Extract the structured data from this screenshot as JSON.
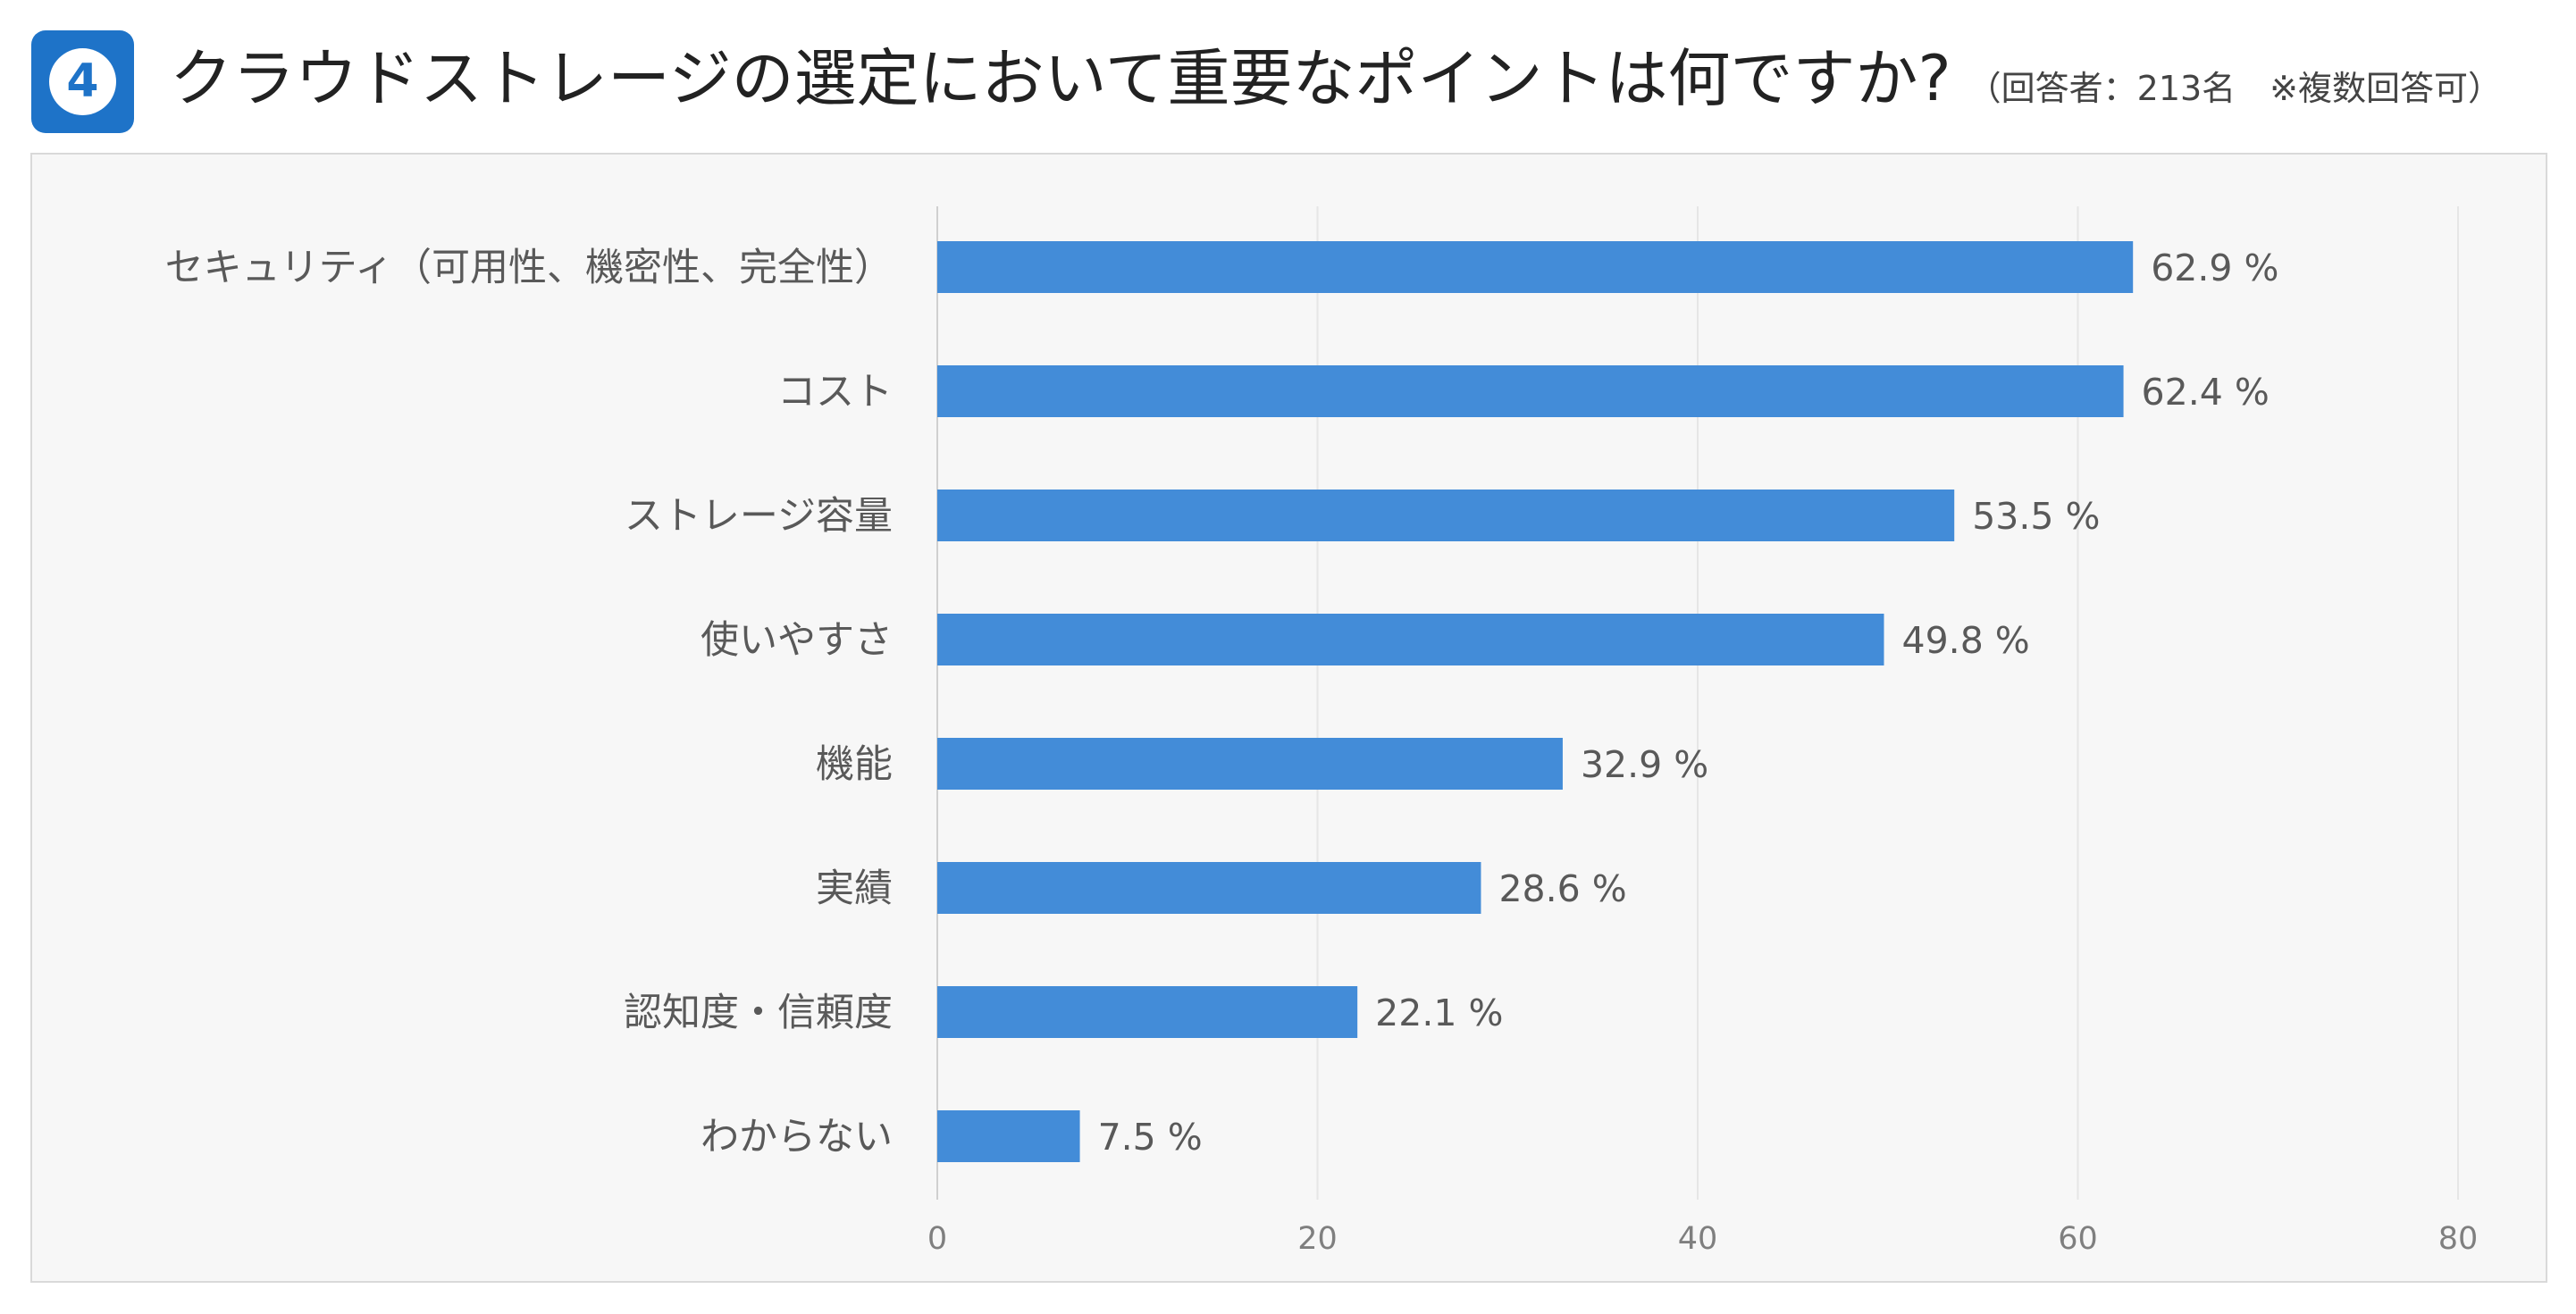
{
  "header": {
    "number": "4",
    "title": "クラウドストレージの選定において重要なポイントは何ですか?",
    "note": "（回答者：213名　※複数回答可）"
  },
  "chart_data": {
    "type": "bar",
    "orientation": "horizontal",
    "categories": [
      "セキュリティ（可用性、機密性、完全性）",
      "コスト",
      "ストレージ容量",
      "使いやすさ",
      "機能",
      "実績",
      "認知度・信頼度",
      "わからない"
    ],
    "values": [
      62.9,
      62.4,
      53.5,
      49.8,
      32.9,
      28.6,
      22.1,
      7.5
    ],
    "value_labels": [
      "62.9 %",
      "62.4 %",
      "53.5 %",
      "49.8 %",
      "32.9 %",
      "28.6 %",
      "22.1 %",
      "7.5 %"
    ],
    "xlim": [
      0,
      80
    ],
    "xticks": [
      0,
      20,
      40,
      60,
      80
    ],
    "grid": true,
    "bar_color": "#438cd8",
    "grid_color": "#e6e6e6",
    "axis_color": "#d0d0d0"
  }
}
